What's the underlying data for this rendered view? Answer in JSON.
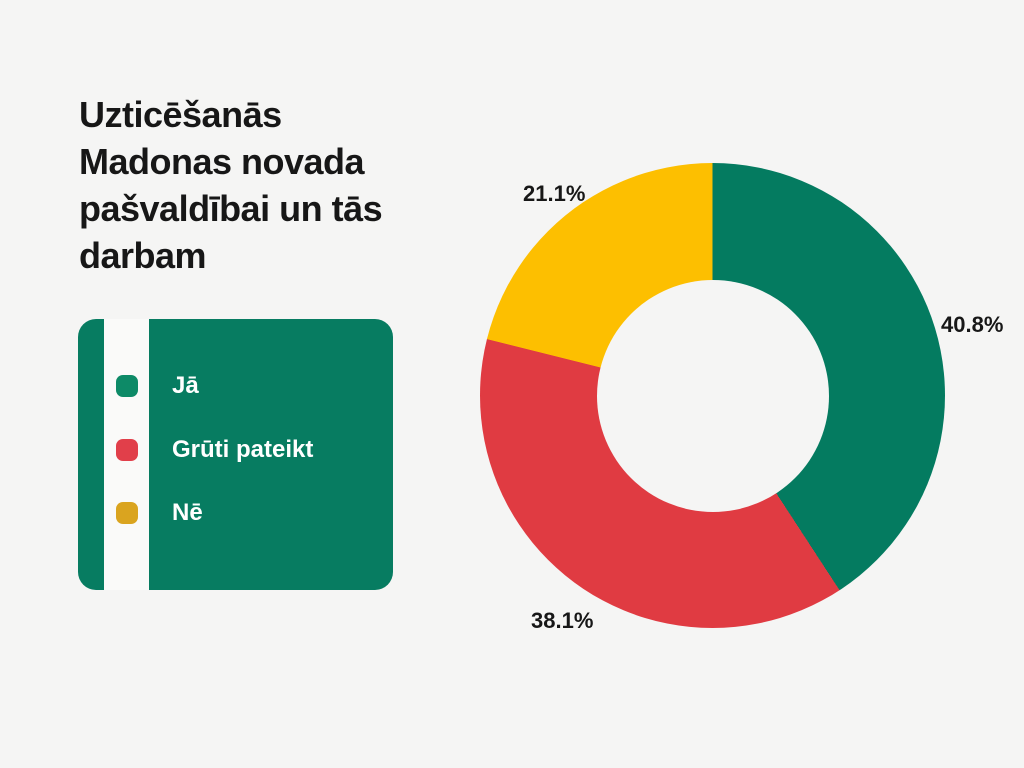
{
  "title": "Uzticēšanās\nMadonas novada\npašvaldībai un tās\ndarbam",
  "background_color": "#f5f5f4",
  "text_color": "#171717",
  "legend": {
    "background": "#077c61",
    "stripe_color": "#fafaf9",
    "text_color": "#ffffff",
    "items": [
      {
        "label": "Jā",
        "color": "#0d8a67"
      },
      {
        "label": "Grūti pateikt",
        "color": "#e13f4a"
      },
      {
        "label": "Nē",
        "color": "#daa41f"
      }
    ]
  },
  "chart_data": {
    "type": "pie",
    "variant": "donut",
    "title": "Uzticēšanās Madonas novada pašvaldībai un tās darbam",
    "slices": [
      {
        "label": "Jā",
        "value": 40.8,
        "display": "40.8%",
        "color": "#047b60"
      },
      {
        "label": "Grūti pateikt",
        "value": 38.1,
        "display": "38.1%",
        "color": "#e03b42"
      },
      {
        "label": "Nē",
        "value": 21.1,
        "display": "21.1%",
        "color": "#fdbf00"
      }
    ],
    "start_angle_deg": 0,
    "direction": "clockwise",
    "inner_radius_ratio": 0.5,
    "legend_position": "left",
    "labels_position": "outside"
  }
}
